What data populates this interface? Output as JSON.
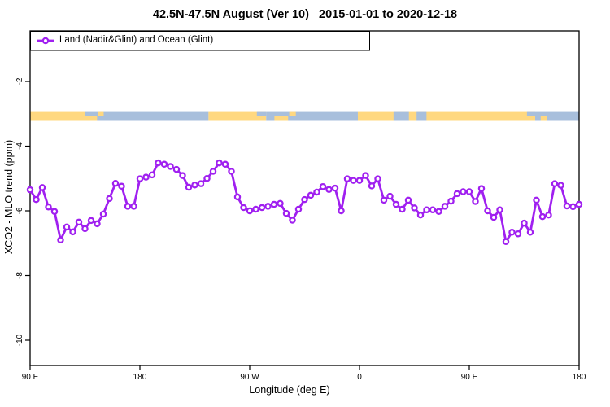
{
  "title": "42.5N-47.5N August (Ver 10)   2015-01-01 to 2020-12-18",
  "legend": {
    "label": "Land (Nadir&Glint) and Ocean (Glint)"
  },
  "colors": {
    "series_purple": "#A020F0",
    "marker_fill": "#FFFFFF",
    "land_yellow": "#FFD880",
    "ocean_blue": "#A8BFDC",
    "axis_black": "#000000"
  },
  "chart_data": {
    "type": "line",
    "title": "42.5N-47.5N August (Ver 10)   2015-01-01 to 2020-12-18",
    "xlabel": "Longitude (deg E)",
    "ylabel": "XCO2 - MLO trend (ppm)",
    "legend_position": "top-left",
    "grid": false,
    "x_ticks": {
      "fractions": [
        0,
        0.2,
        0.4,
        0.6,
        0.8,
        1
      ],
      "labels": [
        "90 E",
        "180",
        "90 W",
        "0",
        "90 E",
        "180"
      ]
    },
    "y_ticks": [
      -2,
      -4,
      -6,
      -8,
      -10
    ],
    "ylim": [
      -10.78,
      -0.44
    ],
    "x_wrap_deg": {
      "start": 90,
      "step": 5,
      "total_span": 450
    },
    "series": [
      {
        "name": "Land (Nadir&Glint) and Ocean (Glint)",
        "color": "#A020F0",
        "marker": "open-circle",
        "values": [
          -5.35,
          -5.65,
          -5.28,
          -5.88,
          -6.02,
          -6.9,
          -6.5,
          -6.65,
          -6.35,
          -6.55,
          -6.3,
          -6.4,
          -6.1,
          -5.62,
          -5.15,
          -5.24,
          -5.86,
          -5.86,
          -5.01,
          -4.96,
          -4.89,
          -4.52,
          -4.56,
          -4.63,
          -4.72,
          -4.91,
          -5.27,
          -5.2,
          -5.16,
          -5.0,
          -4.78,
          -4.52,
          -4.56,
          -4.78,
          -5.57,
          -5.9,
          -6.0,
          -5.95,
          -5.9,
          -5.86,
          -5.8,
          -5.77,
          -6.08,
          -6.29,
          -5.95,
          -5.65,
          -5.52,
          -5.42,
          -5.25,
          -5.34,
          -5.3,
          -6.0,
          -5.01,
          -5.06,
          -5.06,
          -4.91,
          -5.23,
          -5.01,
          -5.67,
          -5.55,
          -5.8,
          -5.95,
          -5.67,
          -5.91,
          -6.13,
          -5.97,
          -5.97,
          -6.02,
          -5.86,
          -5.7,
          -5.47,
          -5.41,
          -5.41,
          -5.71,
          -5.31,
          -6.0,
          -6.2,
          -5.97,
          -6.95,
          -6.66,
          -6.71,
          -6.38,
          -6.66,
          -5.67,
          -6.18,
          -6.13,
          -5.16,
          -5.21,
          -5.85,
          -5.87,
          -5.8
        ]
      }
    ],
    "land_ocean_band": {
      "y_range_ppm": [
        -2.92,
        -3.22
      ],
      "land_color": "#FFD880",
      "ocean_color": "#A8BFDC",
      "segments": [
        {
          "f0": 0.0,
          "f1": 0.1,
          "type": "land"
        },
        {
          "f0": 0.1,
          "f1": 0.325,
          "type": "ocean"
        },
        {
          "f0": 0.325,
          "f1": 0.43,
          "type": "land"
        },
        {
          "f0": 0.43,
          "f1": 0.597,
          "type": "ocean"
        },
        {
          "f0": 0.597,
          "f1": 0.92,
          "type": "land"
        },
        {
          "f0": 0.92,
          "f1": 1.0,
          "type": "ocean"
        }
      ],
      "patches": [
        {
          "f": 0.1,
          "w": 0.022,
          "row": "bottom",
          "type": "land"
        },
        {
          "f": 0.124,
          "w": 0.01,
          "row": "top",
          "type": "land"
        },
        {
          "f": 0.413,
          "w": 0.017,
          "row": "top",
          "type": "ocean"
        },
        {
          "f": 0.445,
          "w": 0.025,
          "row": "bottom",
          "type": "land"
        },
        {
          "f": 0.472,
          "w": 0.012,
          "row": "top",
          "type": "land"
        },
        {
          "f": 0.583,
          "w": 0.014,
          "row": "bottom",
          "type": "ocean"
        },
        {
          "f": 0.662,
          "w": 0.028,
          "row": "full",
          "type": "ocean"
        },
        {
          "f": 0.704,
          "w": 0.018,
          "row": "full",
          "type": "ocean"
        },
        {
          "f": 0.905,
          "w": 0.015,
          "row": "top",
          "type": "ocean"
        },
        {
          "f": 0.93,
          "w": 0.012,
          "row": "bottom",
          "type": "land"
        }
      ]
    }
  }
}
